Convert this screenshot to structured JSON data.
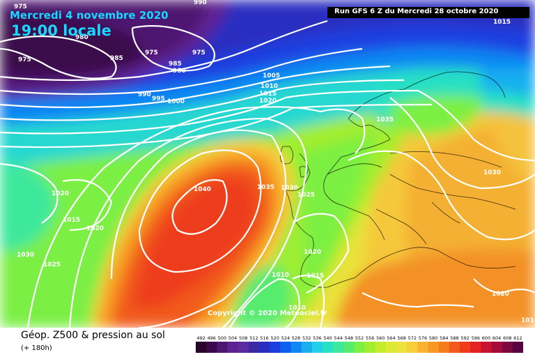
{
  "header": {
    "date": "Mercredi 4 novembre 2020",
    "time": "19:00 locale",
    "run": "Run GFS 6 Z du Mercredi 28 octobre 2020"
  },
  "copyright": "Copyright © 2020 Meteociel.fr",
  "footer": {
    "title": "Géop. Z500 & pression au sol",
    "subtitle": "(+ 180h)"
  },
  "legend": {
    "labels": [
      "492",
      "496",
      "500",
      "504",
      "508",
      "512",
      "516",
      "520",
      "524",
      "528",
      "532",
      "536",
      "540",
      "544",
      "548",
      "552",
      "556",
      "560",
      "564",
      "568",
      "572",
      "576",
      "580",
      "584",
      "588",
      "592",
      "596",
      "600",
      "604",
      "608",
      "612"
    ],
    "colors": [
      "#2a0328",
      "#3b0a4c",
      "#4d1670",
      "#5e2192",
      "#5b2c9e",
      "#3c2aa4",
      "#2a2fc0",
      "#1c3fe0",
      "#0d5ff0",
      "#0f86f3",
      "#19aef0",
      "#1fd0e8",
      "#28e0c4",
      "#3ce89c",
      "#57ec6e",
      "#7cf043",
      "#a2ee2e",
      "#c4ec2d",
      "#dcea36",
      "#eee23c",
      "#f8cd3c",
      "#f8b431",
      "#f79924",
      "#f47c1c",
      "#f15a1a",
      "#ee3c1c",
      "#e42223",
      "#c8142e",
      "#a50c38",
      "#7d0740",
      "#58043e"
    ]
  },
  "isobar_labels": [
    {
      "text": "975"
    },
    {
      "text": "980"
    },
    {
      "text": "990"
    },
    {
      "text": "985"
    },
    {
      "text": "975"
    },
    {
      "text": "975"
    },
    {
      "text": "975"
    },
    {
      "text": "980"
    },
    {
      "text": "985"
    },
    {
      "text": "990"
    },
    {
      "text": "995"
    },
    {
      "text": "1000"
    },
    {
      "text": "1005"
    },
    {
      "text": "1010"
    },
    {
      "text": "1015"
    },
    {
      "text": "1020"
    },
    {
      "text": "1035"
    },
    {
      "text": "1040"
    },
    {
      "text": "1035"
    },
    {
      "text": "1030"
    },
    {
      "text": "1025"
    },
    {
      "text": "1020"
    },
    {
      "text": "1015"
    },
    {
      "text": "1020"
    },
    {
      "text": "1030"
    },
    {
      "text": "1025"
    },
    {
      "text": "1020"
    },
    {
      "text": "1015"
    },
    {
      "text": "1010"
    },
    {
      "text": "1010"
    },
    {
      "text": "1030"
    },
    {
      "text": "1020"
    },
    {
      "text": "1015"
    },
    {
      "text": "1010"
    }
  ]
}
